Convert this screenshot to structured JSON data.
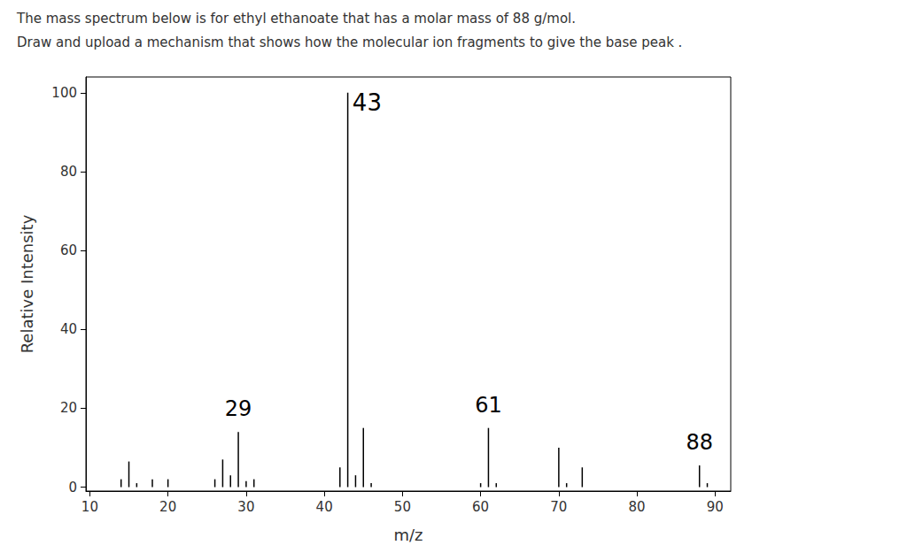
{
  "chart_data": {
    "type": "bar",
    "title": "The mass spectrum below is for ethyl ethanoate that has a molar mass of 88 g/mol.",
    "subtitle": "Draw and upload a mechanism that shows how the molecular ion fragments to give the base peak .",
    "x_label": "m/z",
    "y_label": "Relative Intensity",
    "x": [
      14,
      15,
      16,
      18,
      20,
      26,
      27,
      28,
      29,
      30,
      31,
      42,
      43,
      44,
      45,
      46,
      60,
      61,
      62,
      70,
      71,
      73,
      88,
      89
    ],
    "values": [
      2,
      6.5,
      1,
      2,
      2,
      2,
      7,
      3,
      14,
      1.5,
      2,
      5,
      100,
      3,
      15,
      1,
      1,
      15,
      1,
      10,
      1,
      5,
      5.5,
      1
    ],
    "color": "#000000",
    "xlim": [
      9.5,
      92
    ],
    "xticks": [
      10,
      20,
      30,
      40,
      50,
      60,
      70,
      80,
      90
    ],
    "ylim": [
      -1,
      104
    ],
    "yticks": [
      0,
      20,
      40,
      60,
      80,
      100
    ],
    "grid": false,
    "annotations": [
      {
        "x": 43,
        "text": "43"
      },
      {
        "x": 29,
        "text": "29"
      },
      {
        "x": 61,
        "text": "61"
      },
      {
        "x": 88,
        "text": "88"
      }
    ]
  }
}
